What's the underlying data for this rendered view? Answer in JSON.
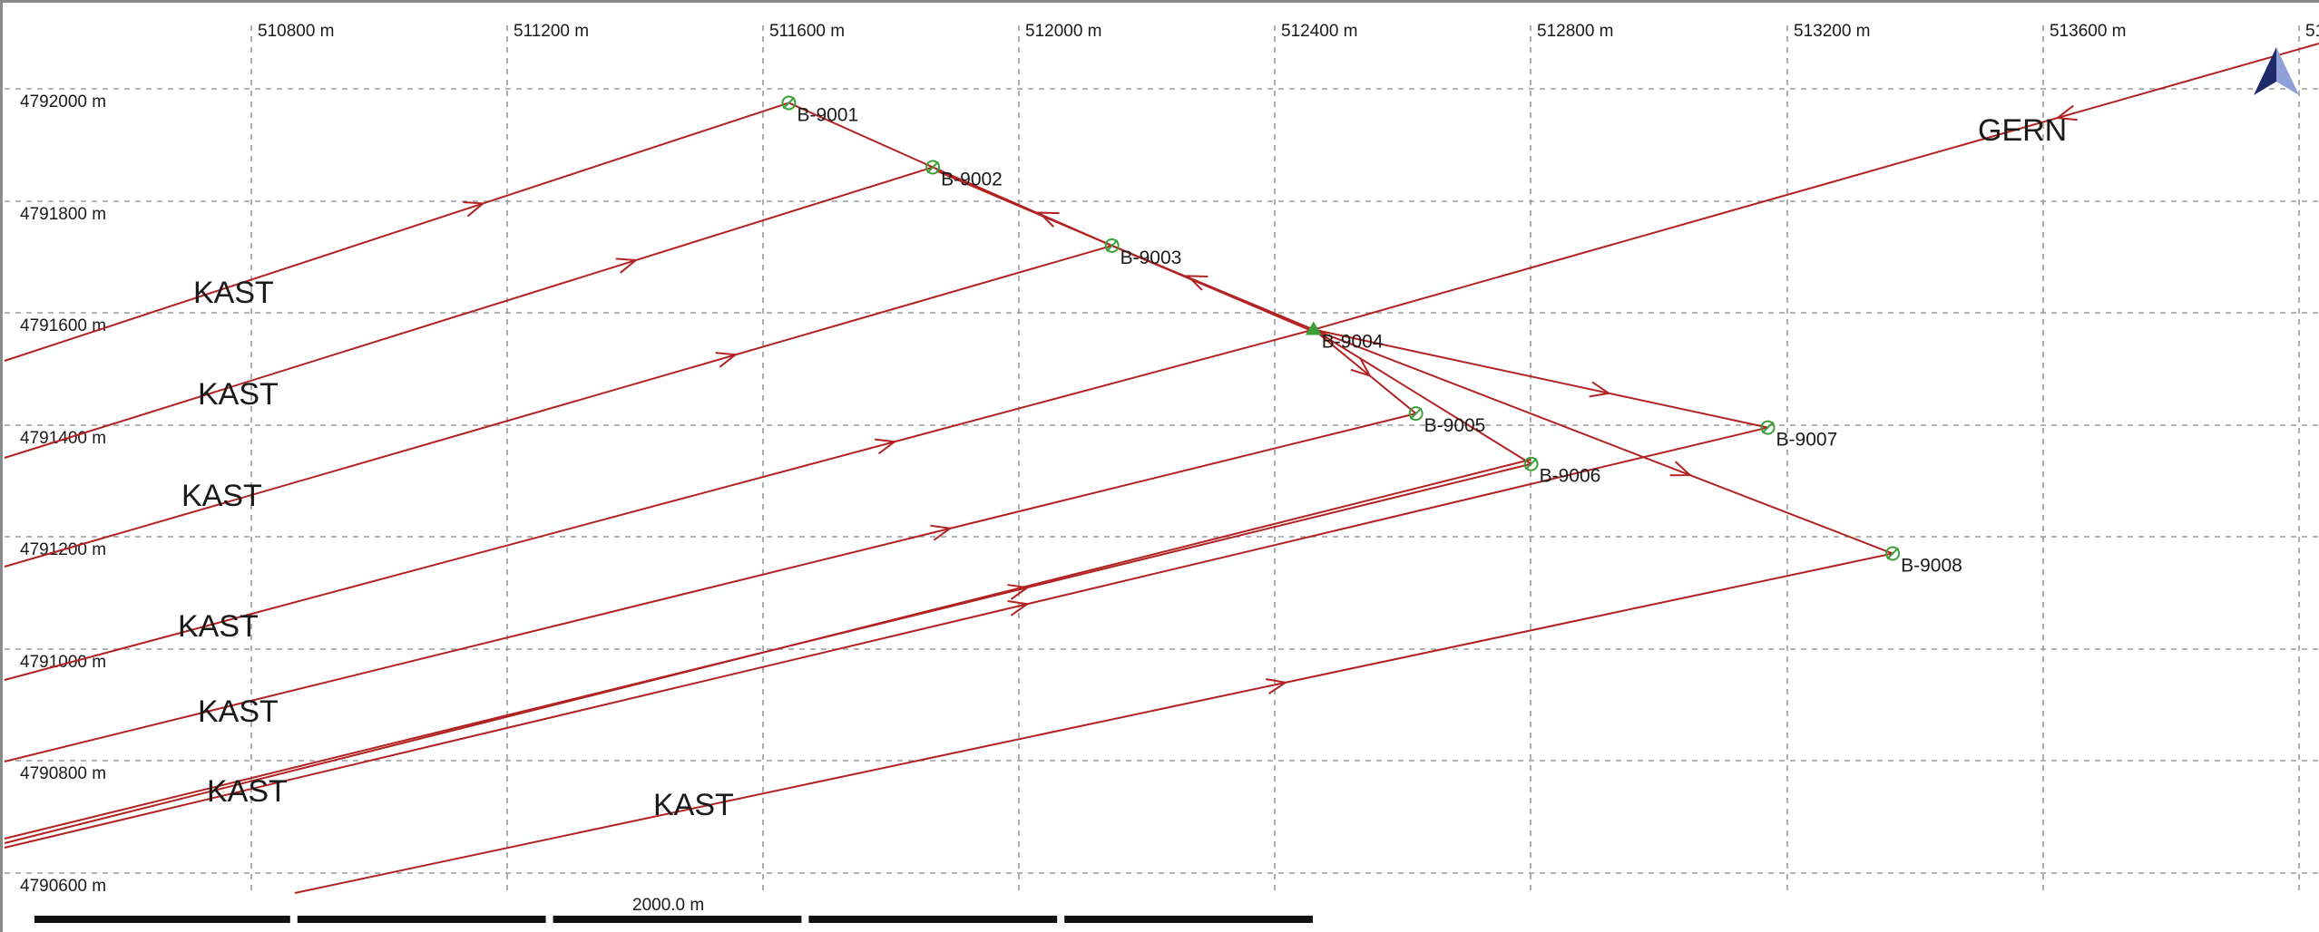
{
  "map": {
    "x_axis_labels": [
      "510800 m",
      "511200 m",
      "511600 m",
      "512000 m",
      "512400 m",
      "512800 m",
      "513200 m",
      "513600 m",
      "51"
    ],
    "y_axis_labels": [
      "4792000 m",
      "4791800 m",
      "4791600 m",
      "4791400 m",
      "4791200 m",
      "4791000 m",
      "4790800 m",
      "4790600 m"
    ],
    "wells": [
      {
        "label": "B-9001",
        "e": 511640,
        "n": 4791975,
        "marker": "circle"
      },
      {
        "label": "B-9002",
        "e": 511865,
        "n": 4791860,
        "marker": "circle"
      },
      {
        "label": "B-9003",
        "e": 512145,
        "n": 4791720,
        "marker": "circle"
      },
      {
        "label": "B-9004",
        "e": 512460,
        "n": 4791570,
        "marker": "triangle"
      },
      {
        "label": "B-9005",
        "e": 512620,
        "n": 4791420,
        "marker": "circle"
      },
      {
        "label": "B-9006",
        "e": 512800,
        "n": 4791330,
        "marker": "circle"
      },
      {
        "label": "B-9007",
        "e": 513170,
        "n": 4791395,
        "marker": "circle"
      },
      {
        "label": "B-9008",
        "e": 513365,
        "n": 4791170,
        "marker": "circle"
      }
    ],
    "line_names": [
      "KAST",
      "KAST",
      "KAST",
      "KAST",
      "KAST",
      "KAST",
      "KAST",
      "GERN"
    ],
    "scale_bar_label": "2000.0 m",
    "north_arrow": "north-arrow-icon",
    "line_color": "#b22222",
    "well_marker_color": "#3aa03a"
  }
}
